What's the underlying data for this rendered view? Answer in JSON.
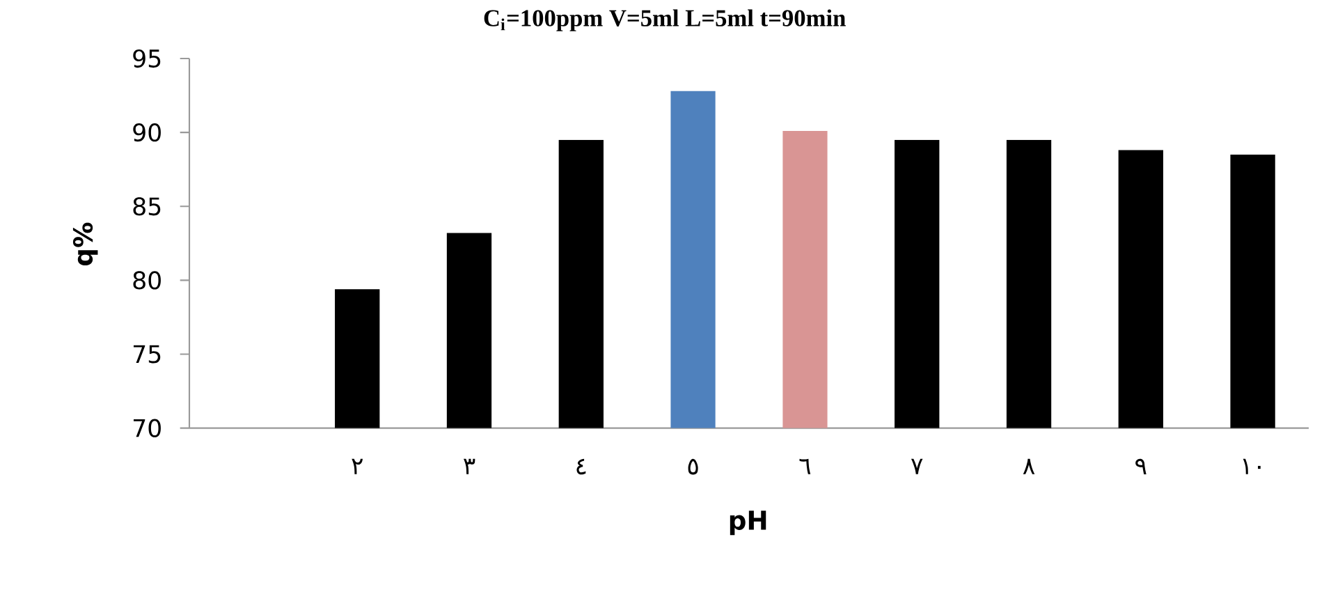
{
  "chart_data": {
    "type": "bar",
    "title": "C$_{i}$=100ppm   V=5ml   L=5ml   t=90min",
    "xlabel": "pH",
    "ylabel": "q%",
    "categories": [
      null,
      "٢",
      "٣",
      "٤",
      "٥",
      "٦",
      "٧",
      "٨",
      "٩",
      "١٠"
    ],
    "values": [
      null,
      79.4,
      83.2,
      89.5,
      92.8,
      90.1,
      89.5,
      89.5,
      88.8,
      88.5
    ],
    "colors": [
      "#000000",
      "#000000",
      "#000000",
      "#000000",
      "#4f81bd",
      "#d99594",
      "#000000",
      "#000000",
      "#000000",
      "#000000"
    ],
    "ylim": [
      70,
      95
    ],
    "yticks": [
      70,
      75,
      80,
      85,
      90,
      95
    ]
  }
}
